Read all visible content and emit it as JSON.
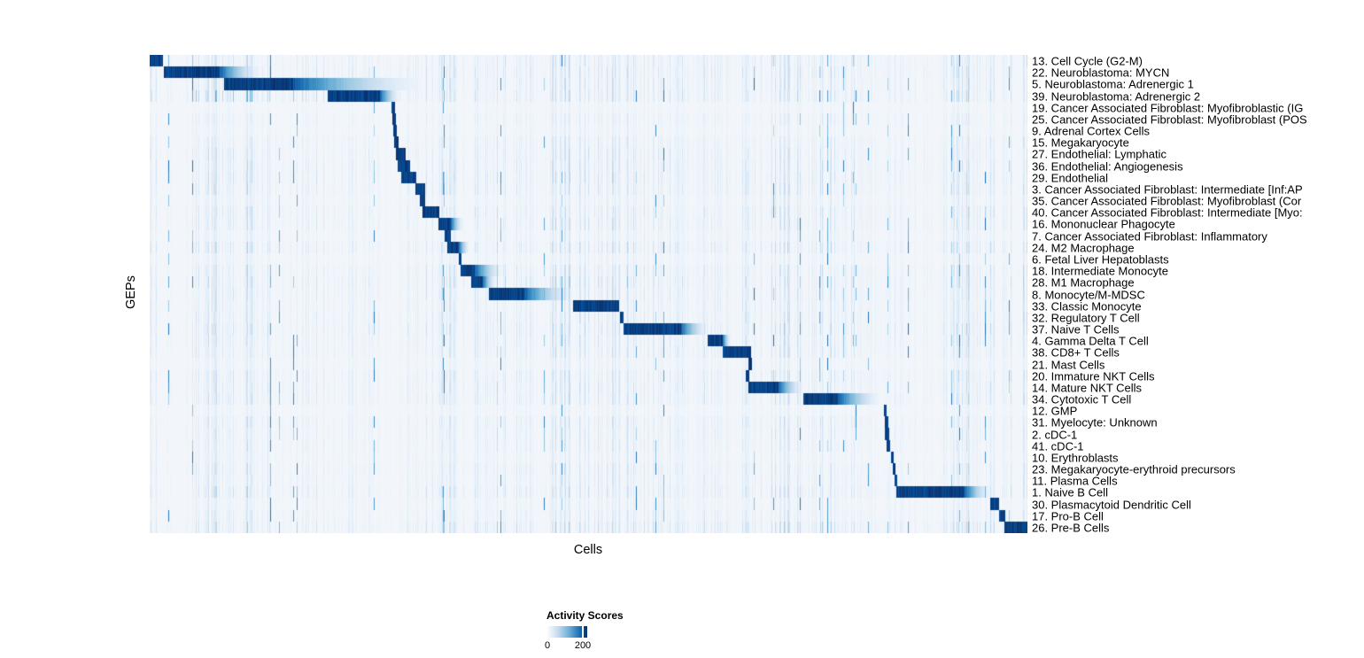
{
  "figure": {
    "x_axis_title": "Cells",
    "y_axis_title": "GEPs"
  },
  "legend": {
    "title": "Activity Scores",
    "ticks": [
      "0",
      "200"
    ]
  },
  "chart_data": {
    "type": "heatmap",
    "title": "",
    "xlabel": "Cells",
    "ylabel": "GEPs",
    "x_axis": "individual cells, no tick labels, ordered by cell population",
    "n_rows": 41,
    "value_name": "Activity Scores",
    "value_scale": {
      "min": 0,
      "labeled_tick": 200
    },
    "background_color": "#f2f6fb",
    "ramp_colors": [
      "#f2f6fb",
      "#deebf7",
      "#c6dbef",
      "#9ecae1",
      "#6baed6",
      "#4292c6",
      "#2171b5",
      "#08519c",
      "#08306b"
    ],
    "legend_gradient": [
      "#ffffff",
      "#c6dbef",
      "#6baed6",
      "#2171b5",
      "#08519c",
      "#08306b"
    ],
    "block_units": "fraction of x-axis width where the row's activity block is dark (s=start, d=dark end, f=fade end)",
    "rows": [
      {
        "label": "13. Cell Cycle (G2-M)",
        "noise": 0.5,
        "block": {
          "s": 0.0,
          "d": 0.0141,
          "f": 0.0141
        }
      },
      {
        "label": "22. Neuroblastoma: MYCN",
        "noise": 0.55,
        "block": {
          "s": 0.0161,
          "d": 0.0787,
          "f": 0.1272
        },
        "bands": [
          {
            "s": 0.0,
            "e": 0.3,
            "a": 0.45
          }
        ]
      },
      {
        "label": "5. Neuroblastoma: Adrenergic 1",
        "noise": 0.5,
        "block": {
          "s": 0.0848,
          "d": 0.1625,
          "f": 0.3179
        },
        "bands": [
          {
            "s": 0.0,
            "e": 0.3,
            "a": 0.45
          }
        ]
      },
      {
        "label": "39. Neuroblastoma: Adrenergic 2",
        "noise": 0.55,
        "block": {
          "s": 0.2028,
          "d": 0.2614,
          "f": 0.2856
        },
        "bands": [
          {
            "s": 0.0,
            "e": 0.285,
            "a": 0.85
          }
        ]
      },
      {
        "label": "19. Cancer Associated Fibroblast: Myofibroblastic (IG",
        "noise": 0.15,
        "block": {
          "s": 0.2755,
          "d": 0.2785,
          "f": 0.2785
        }
      },
      {
        "label": "25. Cancer Associated Fibroblast: Myofibroblast (POS",
        "noise": 0.3,
        "block": {
          "s": 0.2765,
          "d": 0.2795,
          "f": 0.2795
        }
      },
      {
        "label": "9. Adrenal Cortex Cells",
        "noise": 0.2,
        "block": {
          "s": 0.2775,
          "d": 0.2805,
          "f": 0.2805
        }
      },
      {
        "label": "15. Megakaryocyte",
        "noise": 0.4,
        "block": {
          "s": 0.2785,
          "d": 0.2825,
          "f": 0.2825
        }
      },
      {
        "label": "27. Endothelial: Lymphatic",
        "noise": 0.5,
        "block": {
          "s": 0.2805,
          "d": 0.2906,
          "f": 0.2906
        }
      },
      {
        "label": "36. Endothelial: Angiogenesis",
        "noise": 0.5,
        "block": {
          "s": 0.2825,
          "d": 0.2957,
          "f": 0.2957
        }
      },
      {
        "label": "29. Endothelial",
        "noise": 0.55,
        "block": {
          "s": 0.2866,
          "d": 0.3027,
          "f": 0.3027
        }
      },
      {
        "label": "3. Cancer Associated Fibroblast: Intermediate [Inf:AP",
        "noise": 0.5,
        "block": {
          "s": 0.3027,
          "d": 0.3128,
          "f": 0.3128
        }
      },
      {
        "label": "35. Cancer Associated Fibroblast: Myofibroblast (Cor",
        "noise": 0.3,
        "block": {
          "s": 0.3078,
          "d": 0.3128,
          "f": 0.3128
        }
      },
      {
        "label": "40. Cancer Associated Fibroblast: Intermediate [Myo:",
        "noise": 0.5,
        "block": {
          "s": 0.3108,
          "d": 0.329,
          "f": 0.329
        }
      },
      {
        "label": "16. Mononuclear Phagocyte",
        "noise": 0.5,
        "block": {
          "s": 0.329,
          "d": 0.3421,
          "f": 0.3572
        }
      },
      {
        "label": "7. Cancer Associated Fibroblast: Inflammatory",
        "noise": 0.3,
        "block": {
          "s": 0.336,
          "d": 0.3421,
          "f": 0.3421
        }
      },
      {
        "label": "24. M2 Macrophage",
        "noise": 0.55,
        "block": {
          "s": 0.339,
          "d": 0.3511,
          "f": 0.3643
        }
      },
      {
        "label": "6. Fetal Liver Hepatoblasts",
        "noise": 0.25,
        "block": {
          "s": 0.3521,
          "d": 0.3541,
          "f": 0.3541
        }
      },
      {
        "label": "18. Intermediate Monocyte",
        "noise": 0.5,
        "block": {
          "s": 0.3541,
          "d": 0.3693,
          "f": 0.4026
        },
        "bands": [
          {
            "s": 0.3,
            "e": 0.42,
            "a": 0.5
          }
        ]
      },
      {
        "label": "28. M1 Macrophage",
        "noise": 0.55,
        "block": {
          "s": 0.3663,
          "d": 0.3784,
          "f": 0.3945
        },
        "bands": [
          {
            "s": 0.34,
            "e": 0.55,
            "a": 0.6
          }
        ]
      },
      {
        "label": "8. Monocyte/M-MDSC",
        "noise": 0.5,
        "block": {
          "s": 0.3864,
          "d": 0.4258,
          "f": 0.4833
        },
        "bands": [
          {
            "s": 0.36,
            "e": 0.5,
            "a": 0.4
          }
        ]
      },
      {
        "label": "33. Classic Monocyte",
        "noise": 0.45,
        "block": {
          "s": 0.4823,
          "d": 0.5338,
          "f": 0.5338
        }
      },
      {
        "label": "32. Regulatory T Cell",
        "noise": 0.5,
        "block": {
          "s": 0.5358,
          "d": 0.5388,
          "f": 0.5388
        }
      },
      {
        "label": "37. Naive T Cells",
        "noise": 0.6,
        "block": {
          "s": 0.5399,
          "d": 0.6044,
          "f": 0.6367
        }
      },
      {
        "label": "4. Gamma Delta T Cell",
        "noise": 0.5,
        "block": {
          "s": 0.6357,
          "d": 0.6518,
          "f": 0.6619
        }
      },
      {
        "label": "38. CD8+ T Cells",
        "noise": 0.45,
        "block": {
          "s": 0.6529,
          "d": 0.6841,
          "f": 0.6851
        },
        "bands": [
          {
            "s": 0.56,
            "e": 0.65,
            "a": 0.4
          }
        ]
      },
      {
        "label": "21. Mast Cells",
        "noise": 0.25,
        "block": {
          "s": 0.6822,
          "d": 0.6852,
          "f": 0.6852
        }
      },
      {
        "label": "20. Immature NKT Cells",
        "noise": 0.5,
        "block": {
          "s": 0.6791,
          "d": 0.6822,
          "f": 0.6822
        }
      },
      {
        "label": "14. Mature NKT Cells",
        "noise": 0.5,
        "block": {
          "s": 0.6822,
          "d": 0.7154,
          "f": 0.7447
        },
        "bands": [
          {
            "s": 0.72,
            "e": 0.76,
            "a": 0.4
          }
        ]
      },
      {
        "label": "34. Cytotoxic T Cell",
        "noise": 0.5,
        "block": {
          "s": 0.7447,
          "d": 0.7831,
          "f": 0.8345
        },
        "bands": [
          {
            "s": 0.835,
            "e": 0.885,
            "a": 0.5
          }
        ]
      },
      {
        "label": "12. GMP",
        "noise": 0.2,
        "block": {
          "s": 0.8365,
          "d": 0.8385,
          "f": 0.8385
        }
      },
      {
        "label": "31. Myelocyte: Unknown",
        "noise": 0.45,
        "block": {
          "s": 0.8375,
          "d": 0.8405,
          "f": 0.8405
        }
      },
      {
        "label": "2. cDC-1",
        "noise": 0.4,
        "block": {
          "s": 0.8375,
          "d": 0.8416,
          "f": 0.8416
        }
      },
      {
        "label": "41. cDC-1",
        "noise": 0.4,
        "block": {
          "s": 0.8395,
          "d": 0.8426,
          "f": 0.8426
        }
      },
      {
        "label": "10. Erythroblasts",
        "noise": 0.3,
        "block": {
          "s": 0.8446,
          "d": 0.8466,
          "f": 0.8466
        }
      },
      {
        "label": "23. Megakaryocyte-erythroid precursors",
        "noise": 0.45,
        "block": {
          "s": 0.8466,
          "d": 0.8486,
          "f": 0.8486
        }
      },
      {
        "label": "11. Plasma Cells",
        "noise": 0.4,
        "block": {
          "s": 0.8486,
          "d": 0.8507,
          "f": 0.8507
        }
      },
      {
        "label": "1. Naive B Cell",
        "noise": 0.55,
        "block": {
          "s": 0.8507,
          "d": 0.9273,
          "f": 0.9586
        },
        "bands": [
          {
            "s": 0.7,
            "e": 0.85,
            "a": 0.45
          }
        ]
      },
      {
        "label": "30. Plasmacytoid Dendritic Cell",
        "noise": 0.3,
        "block": {
          "s": 0.9576,
          "d": 0.9667,
          "f": 0.9667
        }
      },
      {
        "label": "17. Pro-B Cell",
        "noise": 0.4,
        "block": {
          "s": 0.9677,
          "d": 0.9738,
          "f": 0.9738
        }
      },
      {
        "label": "26. Pre-B Cells",
        "noise": 0.6,
        "block": {
          "s": 0.9738,
          "d": 1.0,
          "f": 1.0
        },
        "bands": [
          {
            "s": 0.55,
            "e": 0.97,
            "a": 0.55
          }
        ]
      }
    ]
  }
}
